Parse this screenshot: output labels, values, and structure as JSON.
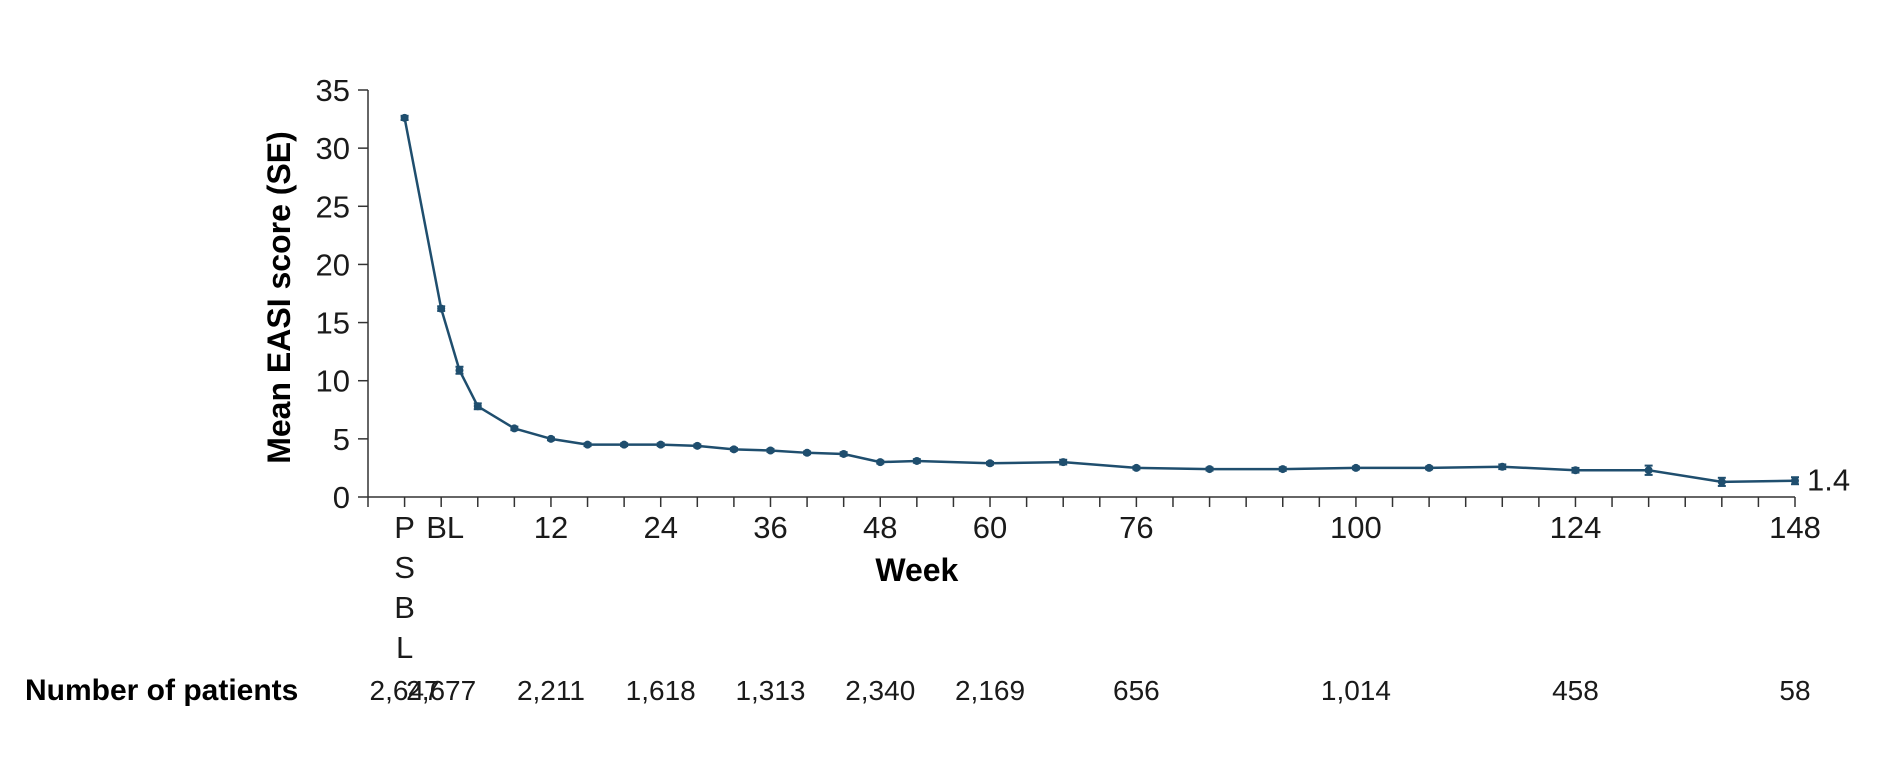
{
  "colors": {
    "series": "#1f4e6e",
    "axis": "#333333",
    "text": "#1a1a1a"
  },
  "chart_data": {
    "type": "line",
    "ylabel": "Mean EASI score (SE)",
    "xlabel": "Week",
    "ylim": [
      0,
      35
    ],
    "yticks": [
      "0",
      "5",
      "10",
      "15",
      "20",
      "25",
      "30",
      "35"
    ],
    "xlim": [
      -8,
      148
    ],
    "grid": false,
    "legend": "none",
    "xtick_labels": [
      {
        "x": -4,
        "label": "PSBL",
        "vertical": true
      },
      {
        "x": 0,
        "label": "BL"
      },
      {
        "x": 12,
        "label": "12"
      },
      {
        "x": 24,
        "label": "24"
      },
      {
        "x": 36,
        "label": "36"
      },
      {
        "x": 48,
        "label": "48"
      },
      {
        "x": 60,
        "label": "60"
      },
      {
        "x": 76,
        "label": "76"
      },
      {
        "x": 100,
        "label": "100"
      },
      {
        "x": 124,
        "label": "124"
      },
      {
        "x": 148,
        "label": "148"
      }
    ],
    "series": [
      {
        "x": [
          -4,
          0,
          2,
          4,
          8,
          12,
          16,
          20,
          24,
          28,
          32,
          36,
          40,
          44,
          48,
          52,
          60,
          68,
          76,
          84,
          92,
          100,
          108,
          116,
          124,
          132,
          140,
          148
        ],
        "y": [
          32.6,
          16.2,
          10.9,
          7.8,
          5.9,
          5.0,
          4.5,
          4.5,
          4.5,
          4.4,
          4.1,
          4.0,
          3.8,
          3.7,
          3.0,
          3.1,
          2.9,
          3.0,
          2.5,
          2.4,
          2.4,
          2.5,
          2.5,
          2.6,
          2.3,
          2.3,
          1.3,
          1.4
        ],
        "se": [
          0.18,
          0.2,
          0.3,
          0.25,
          0.15,
          0.12,
          0.12,
          0.12,
          0.12,
          0.12,
          0.12,
          0.12,
          0.12,
          0.15,
          0.12,
          0.15,
          0.12,
          0.2,
          0.12,
          0.12,
          0.15,
          0.12,
          0.12,
          0.2,
          0.2,
          0.4,
          0.35,
          0.3
        ]
      }
    ],
    "end_label": "1.4",
    "patients": {
      "label": "Number of patients",
      "entries": [
        {
          "x": -4,
          "value": "2,647"
        },
        {
          "x": 0,
          "value": "2,677"
        },
        {
          "x": 12,
          "value": "2,211"
        },
        {
          "x": 24,
          "value": "1,618"
        },
        {
          "x": 36,
          "value": "1,313"
        },
        {
          "x": 48,
          "value": "2,340"
        },
        {
          "x": 60,
          "value": "2,169"
        },
        {
          "x": 76,
          "value": "656"
        },
        {
          "x": 100,
          "value": "1,014"
        },
        {
          "x": 124,
          "value": "458"
        },
        {
          "x": 148,
          "value": "58"
        }
      ]
    }
  }
}
